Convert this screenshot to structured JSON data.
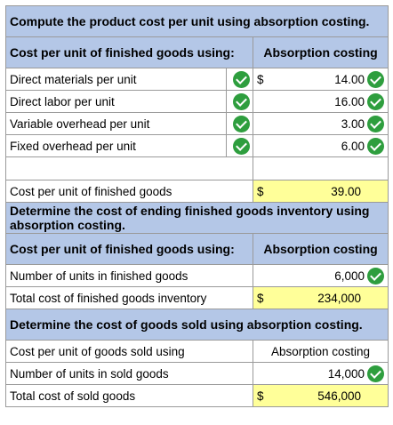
{
  "section1": {
    "title": "Compute the product cost per unit using absorption costing.",
    "header_label": "Cost per unit of finished goods using:",
    "header_col": "Absorption costing",
    "rows": [
      {
        "label": "Direct materials per unit",
        "currency": "$",
        "value": "14.00"
      },
      {
        "label": "Direct labor per unit",
        "currency": "",
        "value": "16.00"
      },
      {
        "label": "Variable overhead per unit",
        "currency": "",
        "value": "3.00"
      },
      {
        "label": "Fixed overhead per unit",
        "currency": "",
        "value": "6.00"
      }
    ],
    "total_label": "Cost per unit of finished goods",
    "total_currency": "$",
    "total_value": "39.00"
  },
  "section2": {
    "title": "Determine the cost of ending finished goods inventory using absorption costing.",
    "header_label": "Cost per unit of finished goods using:",
    "header_col": "Absorption costing",
    "units_label": "Number of units in finished goods",
    "units_value": "6,000",
    "total_label": "Total cost of finished goods inventory",
    "total_currency": "$",
    "total_value": "234,000"
  },
  "section3": {
    "title": "Determine the cost of goods sold using absorption costing.",
    "header_label": "Cost per unit of goods sold using",
    "header_col": "Absorption costing",
    "units_label": "Number of units in sold goods",
    "units_value": "14,000",
    "total_label": "Total cost of sold goods",
    "total_currency": "$",
    "total_value": "546,000"
  },
  "colors": {
    "header_bg": "#b4c7e7",
    "highlight_bg": "#ffff99",
    "check_green": "#2e9e3e"
  }
}
